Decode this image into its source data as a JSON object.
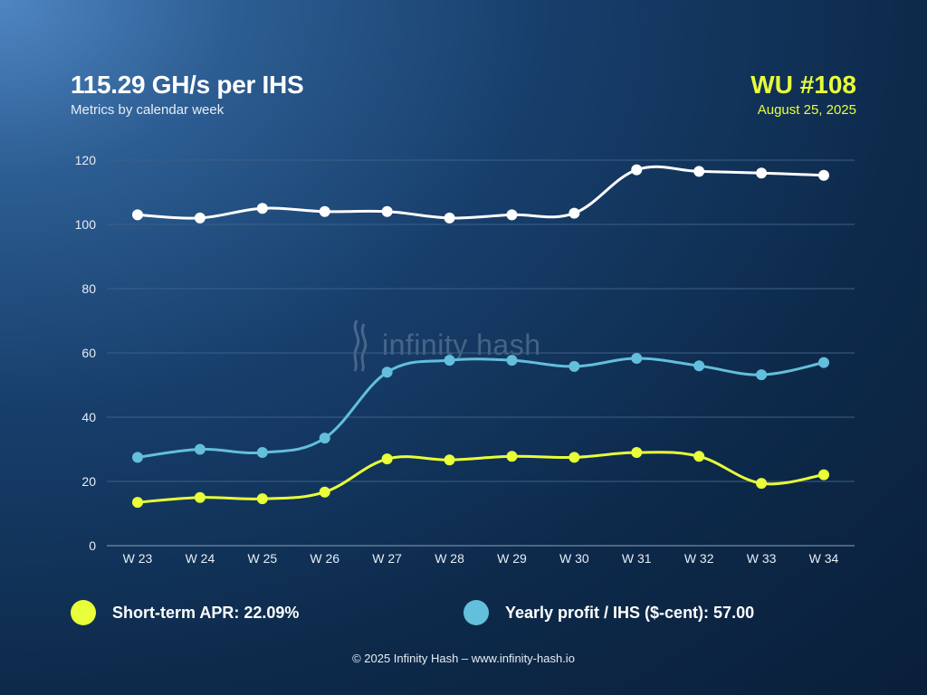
{
  "header": {
    "title": "115.29 GH/s per IHS",
    "subtitle": "Metrics by calendar week",
    "wu_label": "WU #108",
    "date": "August 25, 2025"
  },
  "watermark": {
    "text": "infinity hash"
  },
  "colors": {
    "white_series": "#ffffff",
    "apr": "#e8ff3a",
    "profit": "#63bfdb",
    "grid": "#3d5f86",
    "accent": "#e8ff3a"
  },
  "chart_data": {
    "type": "line",
    "categories": [
      "W 23",
      "W 24",
      "W 25",
      "W 26",
      "W 27",
      "W 28",
      "W 29",
      "W 30",
      "W 31",
      "W 32",
      "W 33",
      "W 34"
    ],
    "ylim": [
      0,
      120
    ],
    "yticks": [
      0,
      20,
      40,
      60,
      80,
      100,
      120
    ],
    "grid": true,
    "legend_position": "bottom",
    "series": [
      {
        "key": "hashrate",
        "color": "#ffffff",
        "values": [
          103,
          102,
          105,
          104,
          104,
          102,
          103,
          103.5,
          117,
          116.5,
          116,
          115.29
        ]
      },
      {
        "key": "profit",
        "color": "#63bfdb",
        "values": [
          27.5,
          30,
          29,
          33.5,
          54,
          57.7,
          57.7,
          55.8,
          58.3,
          56,
          53.2,
          57
        ]
      },
      {
        "key": "apr",
        "color": "#e8ff3a",
        "values": [
          13.5,
          15,
          14.6,
          16.7,
          27,
          26.7,
          27.8,
          27.5,
          29,
          27.8,
          19.4,
          22.09
        ]
      }
    ]
  },
  "legend": [
    {
      "label": "Short-term APR: 22.09%",
      "color": "#e8ff3a"
    },
    {
      "label": "Yearly profit / IHS ($-cent): 57.00",
      "color": "#63bfdb"
    }
  ],
  "footer": {
    "text": "© 2025 Infinity Hash – www.infinity-hash.io"
  }
}
